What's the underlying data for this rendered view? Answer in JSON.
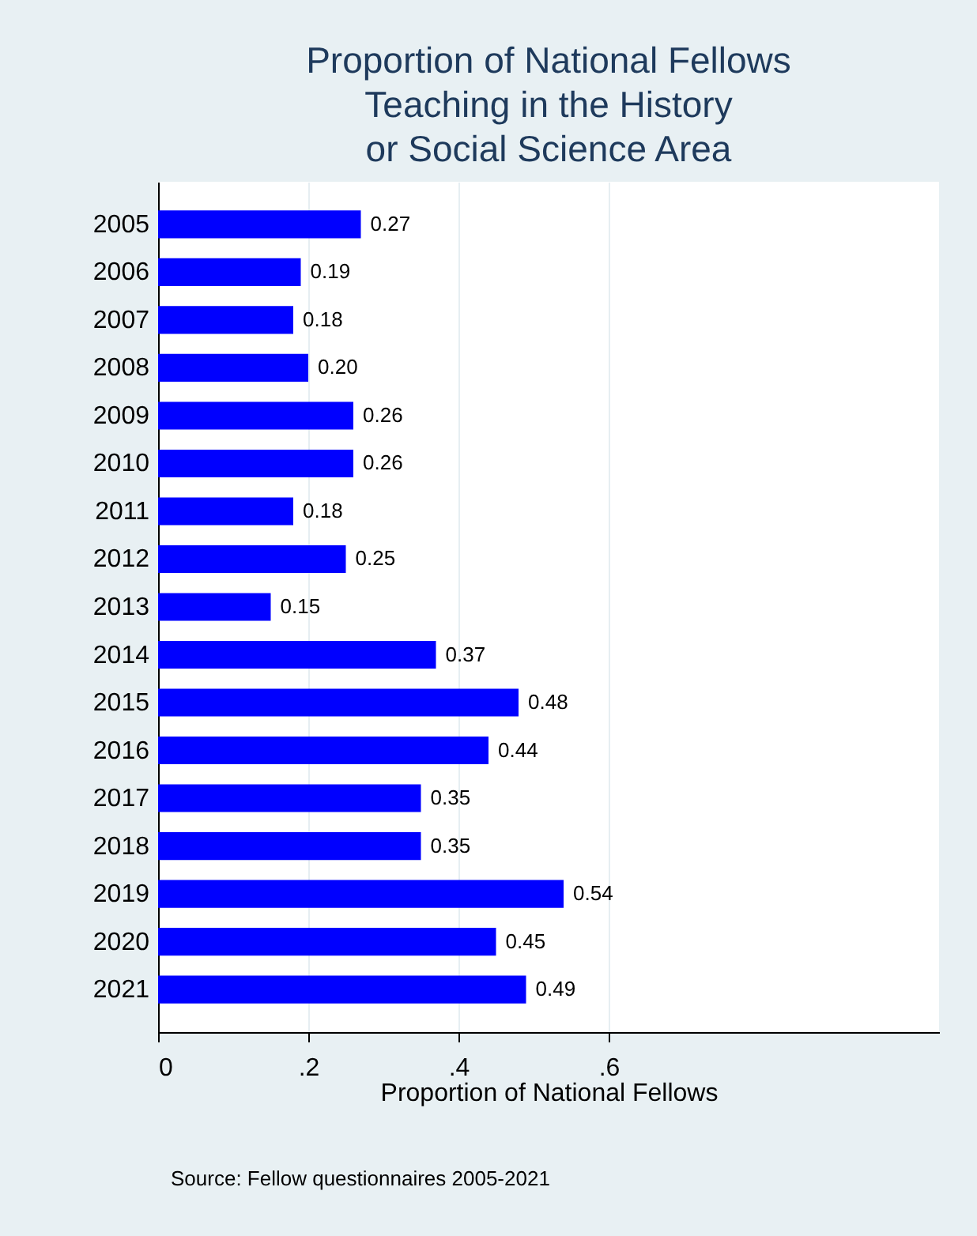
{
  "chart_data": {
    "type": "bar",
    "orientation": "horizontal",
    "title": "Proportion of National Fellows\nTeaching in the History\nor Social Science Area",
    "xlabel": "Proportion of National Fellows",
    "annotations": [
      "Source: Fellow questionnaires 2005-2021"
    ],
    "categories": [
      "2005",
      "2006",
      "2007",
      "2008",
      "2009",
      "2010",
      "2011",
      "2012",
      "2013",
      "2014",
      "2015",
      "2016",
      "2017",
      "2018",
      "2019",
      "2020",
      "2021"
    ],
    "values": [
      0.27,
      0.19,
      0.18,
      0.2,
      0.26,
      0.26,
      0.18,
      0.25,
      0.15,
      0.37,
      0.48,
      0.44,
      0.35,
      0.35,
      0.54,
      0.45,
      0.49
    ],
    "value_labels": [
      "0.27",
      "0.19",
      "0.18",
      "0.20",
      "0.26",
      "0.26",
      "0.18",
      "0.25",
      "0.15",
      "0.37",
      "0.48",
      "0.44",
      "0.35",
      "0.35",
      "0.54",
      "0.45",
      "0.49"
    ],
    "color": "#0000ff",
    "xlim": [
      0,
      1.04
    ],
    "xticks": [
      0,
      {
        "value": 0.2,
        "label": ".2"
      },
      {
        "value": 0.4,
        "label": ".4"
      },
      {
        "value": 0.6,
        "label": ".6"
      }
    ],
    "grid": "x"
  }
}
